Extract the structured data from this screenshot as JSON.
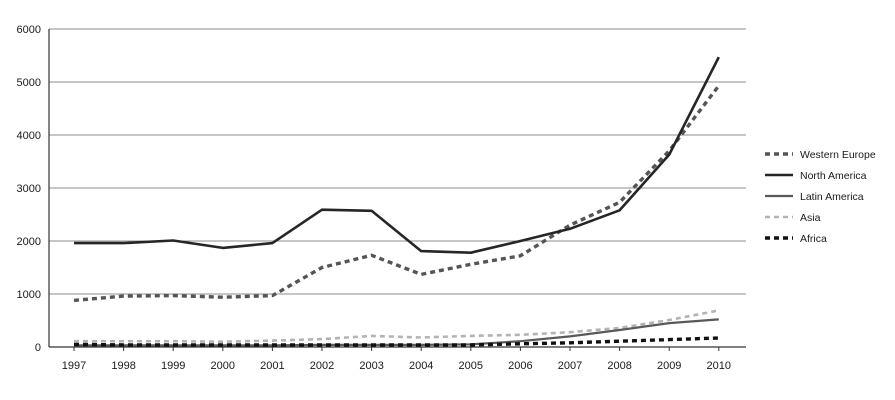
{
  "chart_data": {
    "type": "line",
    "title": "",
    "xlabel": "",
    "ylabel": "",
    "categories": [
      "1997",
      "1998",
      "1999",
      "2000",
      "2001",
      "2002",
      "2003",
      "2004",
      "2005",
      "2006",
      "2007",
      "2008",
      "2009",
      "2010"
    ],
    "ylim": [
      0,
      6000
    ],
    "yticks": [
      0,
      1000,
      2000,
      3000,
      4000,
      5000,
      6000
    ],
    "grid": "horizontal",
    "legend_position": "right",
    "series": [
      {
        "name": "Western Europe",
        "color": "#555555",
        "style": "dashed-thick",
        "values": [
          880,
          960,
          970,
          940,
          970,
          1500,
          1730,
          1370,
          1560,
          1720,
          2300,
          2730,
          3700,
          4930
        ]
      },
      {
        "name": "North America",
        "color": "#262626",
        "style": "solid-thick",
        "values": [
          1960,
          1960,
          2010,
          1870,
          1960,
          2590,
          2570,
          1810,
          1780,
          2000,
          2230,
          2580,
          3630,
          5470
        ]
      },
      {
        "name": "Latin America",
        "color": "#595959",
        "style": "solid",
        "values": [
          30,
          30,
          30,
          30,
          30,
          40,
          40,
          40,
          50,
          110,
          200,
          320,
          450,
          520
        ]
      },
      {
        "name": "Asia",
        "color": "#b3b3b3",
        "style": "dashed",
        "values": [
          110,
          110,
          110,
          100,
          120,
          150,
          210,
          180,
          210,
          230,
          280,
          360,
          510,
          690
        ]
      },
      {
        "name": "Africa",
        "color": "#111111",
        "style": "dashed-thick",
        "values": [
          50,
          40,
          40,
          40,
          40,
          40,
          40,
          40,
          40,
          60,
          80,
          110,
          140,
          170
        ]
      }
    ]
  }
}
